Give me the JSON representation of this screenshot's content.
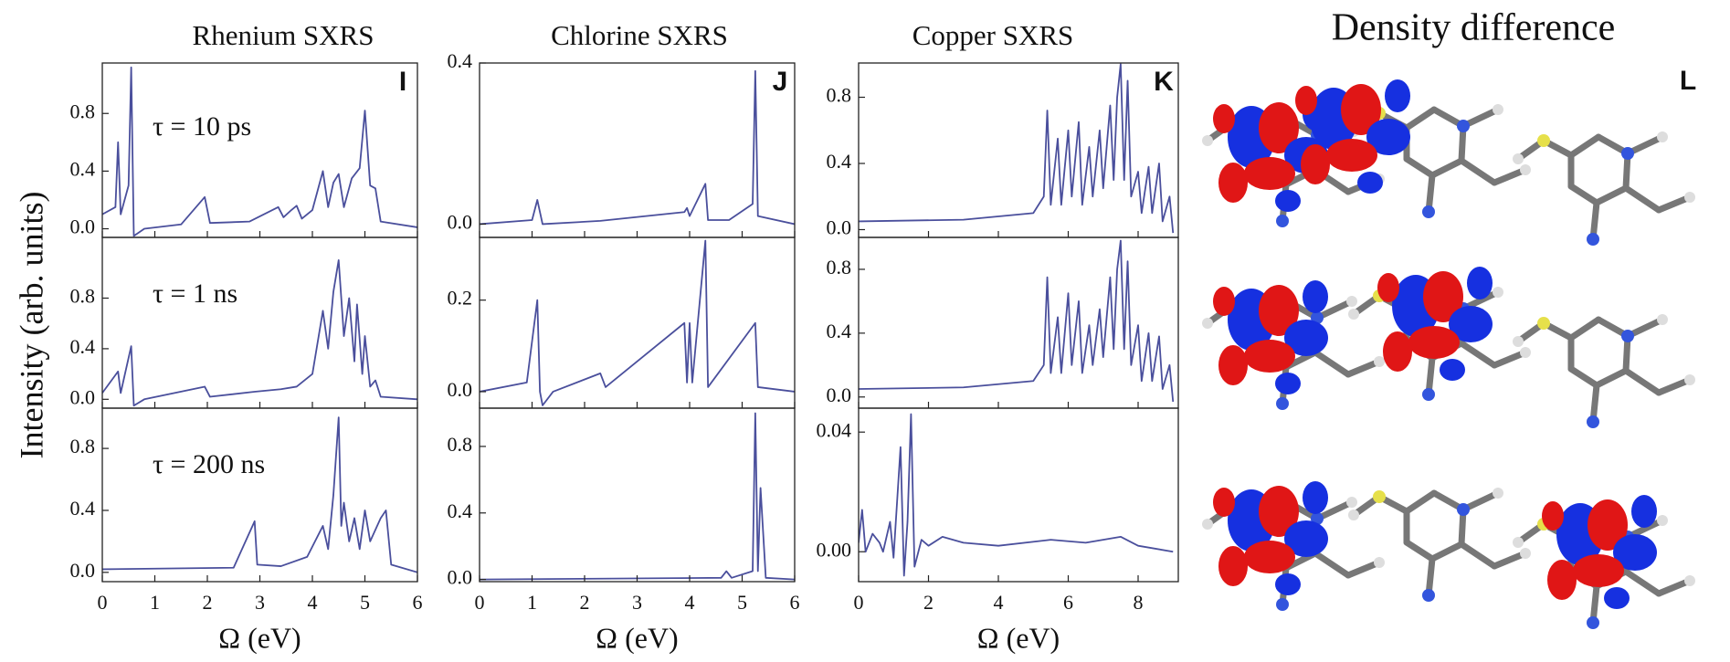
{
  "figure_text": {
    "ylabel": "Intensity (arb. units)",
    "density_title": "Density difference",
    "density_label": "L"
  },
  "chart_data": [
    {
      "type": "line",
      "title": "Rhenium SXRS",
      "panel_label": "I",
      "annotation": "τ = 10 ps",
      "color": "#4a4f9c",
      "x": [
        0,
        0.25,
        0.3,
        0.35,
        0.5,
        0.55,
        0.6,
        0.8,
        1.5,
        1.95,
        2.05,
        2.8,
        3.35,
        3.45,
        3.6,
        3.7,
        3.8,
        4.0,
        4.2,
        4.3,
        4.4,
        4.5,
        4.6,
        4.75,
        4.9,
        5.0,
        5.1,
        5.2,
        5.3,
        6
      ],
      "values": [
        0.1,
        0.15,
        0.6,
        0.1,
        0.3,
        1.12,
        -0.05,
        0.0,
        0.03,
        0.22,
        0.04,
        0.05,
        0.15,
        0.08,
        0.13,
        0.16,
        0.07,
        0.13,
        0.4,
        0.15,
        0.32,
        0.38,
        0.15,
        0.35,
        0.42,
        0.82,
        0.3,
        0.28,
        0.05,
        0.01
      ],
      "xlim": [
        0,
        6
      ],
      "xticks": [
        0,
        1,
        2,
        3,
        4,
        5,
        6
      ],
      "ylim": [
        -0.06,
        1.15
      ],
      "yticks": [
        {
          "value": 0,
          "label": "0.0"
        },
        0.4,
        0.8
      ]
    },
    {
      "type": "line",
      "annotation": "τ = 1 ns",
      "color": "#4a4f9c",
      "x": [
        0,
        0.3,
        0.35,
        0.55,
        0.6,
        0.8,
        1.95,
        2.05,
        2.9,
        3.4,
        3.7,
        4.0,
        4.2,
        4.3,
        4.4,
        4.5,
        4.6,
        4.7,
        4.8,
        4.85,
        4.95,
        5.0,
        5.1,
        5.2,
        5.3,
        6
      ],
      "values": [
        0.05,
        0.22,
        0.05,
        0.42,
        -0.05,
        0.0,
        0.1,
        0.02,
        0.06,
        0.08,
        0.1,
        0.2,
        0.7,
        0.4,
        0.85,
        1.1,
        0.5,
        0.8,
        0.3,
        0.75,
        0.2,
        0.5,
        0.1,
        0.15,
        0.02,
        0.0
      ],
      "xlim": [
        0,
        6
      ],
      "xticks": [
        0,
        1,
        2,
        3,
        4,
        5,
        6
      ],
      "ylim": [
        -0.07,
        1.28
      ],
      "yticks": [
        {
          "value": 0,
          "label": "0.0"
        },
        0.4,
        0.8
      ]
    },
    {
      "type": "line",
      "annotation": "τ = 200 ns",
      "xlabel": "Ω (eV)",
      "color": "#4a4f9c",
      "x": [
        0,
        2.5,
        2.9,
        2.95,
        3.4,
        3.9,
        4.2,
        4.3,
        4.4,
        4.5,
        4.55,
        4.6,
        4.7,
        4.8,
        4.9,
        5.0,
        5.1,
        5.3,
        5.4,
        5.5,
        6
      ],
      "values": [
        0.02,
        0.03,
        0.33,
        0.05,
        0.04,
        0.1,
        0.3,
        0.15,
        0.5,
        1.0,
        0.3,
        0.45,
        0.2,
        0.35,
        0.15,
        0.4,
        0.2,
        0.35,
        0.4,
        0.05,
        0.0
      ],
      "xlim": [
        0,
        6
      ],
      "xticks": [
        0,
        1,
        2,
        3,
        4,
        5,
        6
      ],
      "ylim": [
        -0.06,
        1.06
      ],
      "yticks": [
        {
          "value": 0,
          "label": "0.0"
        },
        0.4,
        0.8
      ]
    },
    {
      "type": "line",
      "title": "Chlorine SXRS",
      "panel_label": "J",
      "color": "#4a4f9c",
      "x": [
        0,
        1.0,
        1.1,
        1.2,
        2.3,
        3.9,
        3.95,
        4.0,
        4.3,
        4.35,
        4.75,
        5.2,
        5.25,
        5.3,
        6
      ],
      "values": [
        0.0,
        0.01,
        0.06,
        0.0,
        0.008,
        0.03,
        0.04,
        0.02,
        0.1,
        0.01,
        0.01,
        0.05,
        0.38,
        0.02,
        0.0
      ],
      "xlim": [
        0,
        6
      ],
      "xticks": [
        0,
        1,
        2,
        3,
        4,
        5,
        6
      ],
      "ylim": [
        -0.033,
        0.4
      ],
      "yticks": [
        {
          "value": 0,
          "label": "0.0"
        },
        0.4
      ]
    },
    {
      "type": "line",
      "color": "#4a4f9c",
      "x": [
        0,
        0.9,
        1.1,
        1.15,
        1.2,
        1.4,
        2.3,
        2.4,
        3.9,
        3.95,
        4.0,
        4.05,
        4.3,
        4.35,
        5.25,
        5.3,
        6
      ],
      "values": [
        0.0,
        0.02,
        0.2,
        0.0,
        -0.03,
        0.0,
        0.04,
        0.01,
        0.15,
        0.02,
        0.15,
        0.02,
        0.33,
        0.01,
        0.15,
        0.01,
        0.0
      ],
      "xlim": [
        0,
        6
      ],
      "xticks": [
        0,
        1,
        2,
        3,
        4,
        5,
        6
      ],
      "ylim": [
        -0.036,
        0.337
      ],
      "yticks": [
        {
          "value": 0,
          "label": "0.0"
        },
        0.2
      ]
    },
    {
      "type": "line",
      "xlabel": "Ω (eV)",
      "color": "#4a4f9c",
      "x": [
        0,
        4.6,
        4.7,
        4.8,
        5.2,
        5.25,
        5.3,
        5.35,
        5.45,
        6
      ],
      "values": [
        0.0,
        0.01,
        0.05,
        0.01,
        0.05,
        1.0,
        0.05,
        0.55,
        0.01,
        0.0
      ],
      "xlim": [
        0,
        6
      ],
      "xticks": [
        0,
        1,
        2,
        3,
        4,
        5,
        6
      ],
      "ylim": [
        -0.013,
        1.03
      ],
      "yticks": [
        {
          "value": 0,
          "label": "0.0"
        },
        0.4,
        0.8
      ]
    },
    {
      "type": "line",
      "title": "Copper SXRS",
      "panel_label": "K",
      "color": "#4a4f9c",
      "x": [
        0,
        3,
        5,
        5.3,
        5.4,
        5.5,
        5.7,
        5.8,
        6.0,
        6.1,
        6.3,
        6.4,
        6.6,
        6.7,
        6.9,
        7.0,
        7.2,
        7.3,
        7.4,
        7.5,
        7.6,
        7.7,
        7.8,
        8.0,
        8.1,
        8.3,
        8.4,
        8.6,
        8.7,
        8.9,
        9.0
      ],
      "values": [
        0.05,
        0.06,
        0.1,
        0.2,
        0.72,
        0.15,
        0.55,
        0.15,
        0.6,
        0.2,
        0.65,
        0.15,
        0.5,
        0.2,
        0.6,
        0.25,
        0.75,
        0.3,
        0.8,
        1.0,
        0.3,
        0.9,
        0.2,
        0.35,
        0.1,
        0.38,
        0.1,
        0.4,
        0.05,
        0.2,
        -0.02
      ],
      "xlim": [
        0,
        9.15
      ],
      "xticks": [
        0,
        2,
        4,
        6,
        8
      ],
      "ylim": [
        -0.047,
        1.007
      ],
      "yticks": [
        {
          "value": 0,
          "label": "0.0"
        },
        0.4,
        0.8
      ]
    },
    {
      "type": "line",
      "color": "#4a4f9c",
      "x": [
        0,
        3,
        5,
        5.3,
        5.4,
        5.5,
        5.7,
        5.8,
        6.0,
        6.1,
        6.3,
        6.4,
        6.6,
        6.7,
        6.9,
        7.0,
        7.2,
        7.3,
        7.4,
        7.5,
        7.6,
        7.7,
        7.8,
        8.0,
        8.1,
        8.3,
        8.4,
        8.6,
        8.7,
        8.9,
        9.0
      ],
      "values": [
        0.05,
        0.06,
        0.1,
        0.2,
        0.75,
        0.15,
        0.5,
        0.15,
        0.65,
        0.2,
        0.6,
        0.15,
        0.45,
        0.2,
        0.55,
        0.25,
        0.75,
        0.3,
        0.8,
        0.98,
        0.3,
        0.85,
        0.2,
        0.45,
        0.1,
        0.4,
        0.1,
        0.38,
        0.05,
        0.2,
        -0.03
      ],
      "xlim": [
        0,
        9.15
      ],
      "xticks": [
        0,
        2,
        4,
        6,
        8
      ],
      "ylim": [
        -0.07,
        1.0
      ],
      "yticks": [
        {
          "value": 0,
          "label": "0.0"
        },
        0.4,
        0.8
      ]
    },
    {
      "type": "line",
      "xlabel": "Ω (eV)",
      "color": "#4a4f9c",
      "x": [
        0,
        0.1,
        0.2,
        0.4,
        0.6,
        0.7,
        0.9,
        1.0,
        1.2,
        1.3,
        1.4,
        1.5,
        1.6,
        1.8,
        2.0,
        2.4,
        3.0,
        4.0,
        5.5,
        6.5,
        7.5,
        8.0,
        9.0
      ],
      "values": [
        0.003,
        0.014,
        0.0,
        0.006,
        0.003,
        0.0,
        0.01,
        -0.002,
        0.035,
        -0.008,
        0.01,
        0.046,
        -0.005,
        0.004,
        0.002,
        0.005,
        0.003,
        0.002,
        0.004,
        0.003,
        0.005,
        0.002,
        0.0
      ],
      "xlim": [
        0,
        9.15
      ],
      "xticks": [
        0,
        2,
        4,
        6,
        8
      ],
      "ylim": [
        -0.01,
        0.048
      ],
      "yticks": [
        {
          "value": 0,
          "label": "0.00"
        },
        0.04
      ]
    }
  ]
}
